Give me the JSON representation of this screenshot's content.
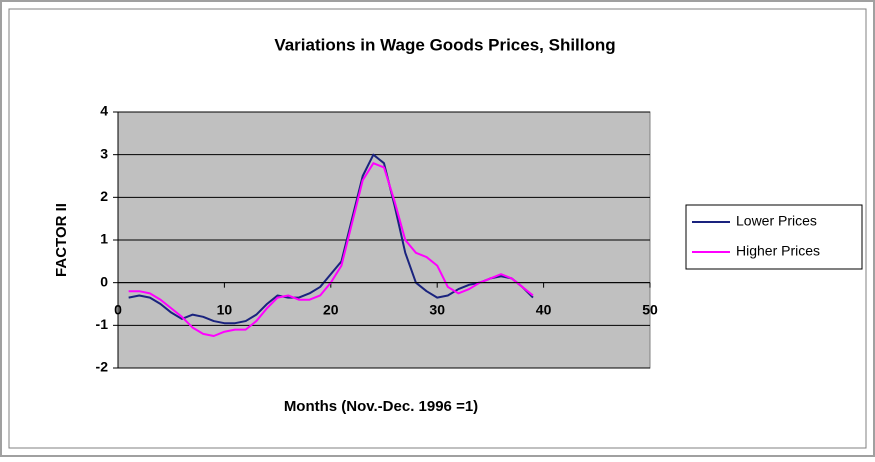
{
  "chart_data": {
    "type": "line",
    "title": "Variations in Wage Goods Prices, Shillong",
    "x_label": "Months (Nov.-Dec. 1996 =1)",
    "y_label": "FACTOR II",
    "x": [
      1,
      2,
      3,
      4,
      5,
      6,
      7,
      8,
      9,
      10,
      11,
      12,
      13,
      14,
      15,
      16,
      17,
      18,
      19,
      20,
      21,
      22,
      23,
      24,
      25,
      26,
      27,
      28,
      29,
      30,
      31,
      32,
      33,
      34,
      35,
      36,
      37,
      38,
      39
    ],
    "series": [
      {
        "name": "Lower Prices",
        "color": "#1a237e",
        "values": [
          -0.35,
          -0.3,
          -0.35,
          -0.5,
          -0.7,
          -0.85,
          -0.75,
          -0.8,
          -0.9,
          -0.95,
          -0.95,
          -0.9,
          -0.75,
          -0.5,
          -0.3,
          -0.35,
          -0.35,
          -0.25,
          -0.1,
          0.2,
          0.5,
          1.5,
          2.5,
          3.0,
          2.8,
          1.8,
          0.7,
          0.0,
          -0.2,
          -0.35,
          -0.3,
          -0.15,
          -0.05,
          0.0,
          0.1,
          0.15,
          0.1,
          -0.1,
          -0.35
        ]
      },
      {
        "name": "Higher Prices",
        "color": "#ff00ff",
        "values": [
          -0.2,
          -0.2,
          -0.25,
          -0.4,
          -0.6,
          -0.8,
          -1.05,
          -1.2,
          -1.25,
          -1.15,
          -1.1,
          -1.1,
          -0.9,
          -0.6,
          -0.35,
          -0.3,
          -0.4,
          -0.4,
          -0.3,
          0.0,
          0.4,
          1.4,
          2.4,
          2.8,
          2.7,
          1.9,
          1.0,
          0.7,
          0.6,
          0.4,
          -0.1,
          -0.25,
          -0.15,
          0.0,
          0.1,
          0.2,
          0.1,
          -0.1,
          -0.3
        ]
      }
    ],
    "xlim": [
      0,
      50
    ],
    "xticks": [
      0,
      10,
      20,
      30,
      40,
      50
    ],
    "ylim": [
      -2,
      4
    ],
    "yticks": [
      -2,
      -1,
      0,
      1,
      2,
      3,
      4
    ],
    "grid": true,
    "legend": "right",
    "plot_color": "#c0c0c0"
  }
}
